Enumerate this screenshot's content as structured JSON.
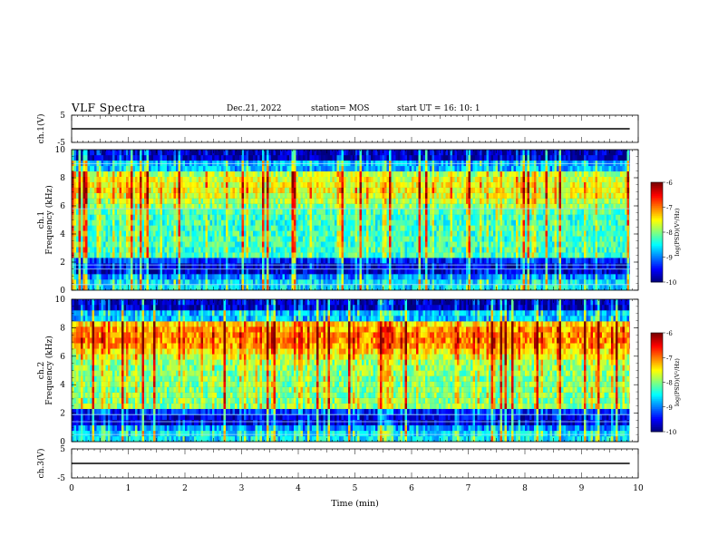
{
  "header": {
    "title": "VLF Spectra",
    "date": "Dec.21, 2022",
    "station": "station= MOS",
    "start": "start  UT =   16: 10: 1"
  },
  "chart_data": [
    {
      "type": "line",
      "name": "ch1-voltage",
      "ylabel": "ch.1(V)",
      "ylim": [
        -5,
        5
      ],
      "yticks": [
        "5",
        "-5"
      ],
      "x": [
        0,
        9.85
      ],
      "values": [
        0.0,
        0.0
      ]
    },
    {
      "type": "heatmap",
      "name": "ch1-spectrogram",
      "ylabel_top": "ch.1",
      "ylabel": "Frequency (kHz)",
      "ylim": [
        0,
        10
      ],
      "yticks": [
        "0",
        "2",
        "4",
        "6",
        "8",
        "10"
      ],
      "xlim": [
        0,
        10
      ],
      "data_extent_x": [
        0,
        9.85
      ],
      "colorbar": {
        "label": "log(PSD)(V²/Hz)",
        "range": [
          -10,
          -6
        ],
        "ticks": [
          "-6",
          "-7",
          "-8",
          "-9",
          "-10"
        ]
      },
      "horizontal_lines_khz": [
        0.4,
        1.5,
        1.8,
        5.8,
        9.0
      ]
    },
    {
      "type": "heatmap",
      "name": "ch2-spectrogram",
      "ylabel_top": "ch.2",
      "ylabel": "Frequency (kHz)",
      "ylim": [
        0,
        10
      ],
      "yticks": [
        "0",
        "2",
        "4",
        "6",
        "8",
        "10"
      ],
      "xlim": [
        0,
        10
      ],
      "data_extent_x": [
        0,
        9.85
      ],
      "colorbar": {
        "label": "log(PSD)(V²/Hz)",
        "range": [
          -10,
          -6
        ],
        "ticks": [
          "-6",
          "-7",
          "-8",
          "-9",
          "-10"
        ]
      },
      "horizontal_lines_khz": [
        0.5,
        1.4,
        1.9
      ]
    },
    {
      "type": "line",
      "name": "ch3-voltage",
      "ylabel": "ch.3(V)",
      "ylim": [
        -5,
        5
      ],
      "yticks": [
        "5",
        "-5"
      ],
      "x": [
        0,
        9.85
      ],
      "values": [
        0.0,
        0.0
      ],
      "xlabel": "Time (min)",
      "xlim": [
        0,
        10
      ],
      "xticks": [
        "0",
        "1",
        "2",
        "3",
        "4",
        "5",
        "6",
        "7",
        "8",
        "9",
        "10"
      ]
    }
  ]
}
